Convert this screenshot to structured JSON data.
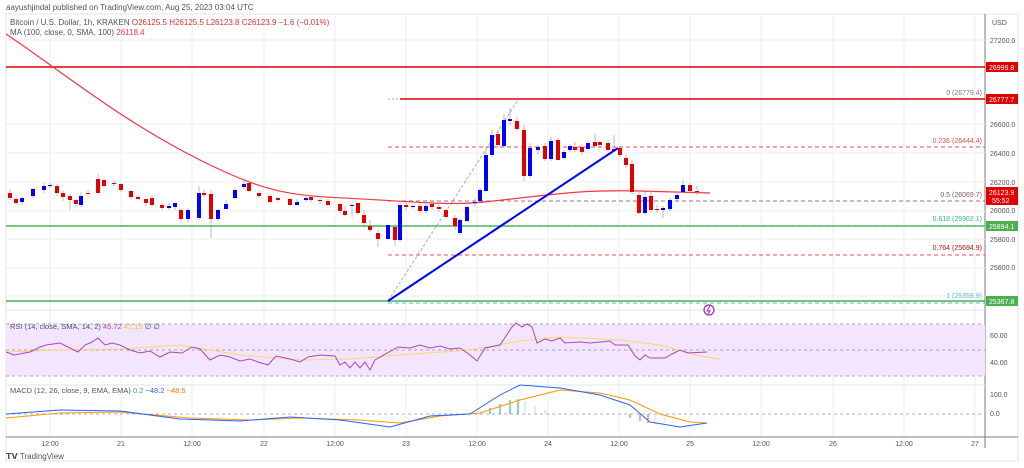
{
  "published": "aayushjindal published on TradingView.com, Aug 25, 2023 03:04 UTC",
  "header": {
    "symbol": "Bitcoin / U.S. Dollar, 1h, KRAKEN",
    "ohlc": "O26125.5  H26125.5  L26123.8  C26123.9  −1.6 (−0.01%)",
    "ma_label": "MA (100, close, 0, SMA, 100)",
    "ma_value": "26118.4"
  },
  "currency": "USD",
  "rsi": {
    "label": "RSI (14, close, SMA, 14, 2)",
    "value": "45.72",
    "sma": "41.15",
    "extra": "∅ ∅"
  },
  "macd": {
    "label": "MACD (12, 26, close, 9, EMA, EMA)",
    "hist": "0.2",
    "macd": "−48.2",
    "signal": "−48.5"
  },
  "footer": {
    "brand": "TradingView"
  },
  "colors": {
    "bull": "#0000ff",
    "bear": "#e00000",
    "ma": "#f23645",
    "support": "#4caf50",
    "resistance": "#e00000",
    "rsi": "#ab47bc",
    "rsi_sma": "#f8e28a",
    "macd": "#2962ff",
    "signal": "#ff6d00"
  },
  "chart_data": {
    "type": "candlestick",
    "title": "Bitcoin / U.S. Dollar, 1h, KRAKEN",
    "ylabel": "USD",
    "y_ticks": [
      "27200.0",
      "26600.0",
      "26400.0",
      "26200.0",
      "26000.0",
      "25800.0",
      "25600.0",
      "25400.0"
    ],
    "x_ticks": [
      "12:00",
      "21",
      "12:00",
      "22",
      "12:00",
      "23",
      "12:00",
      "24",
      "12:00",
      "25",
      "12:00",
      "26",
      "12:00",
      "27"
    ],
    "ylim": [
      25300,
      27300
    ],
    "price_tags": [
      {
        "label": "26999.8",
        "color": "#e00000"
      },
      {
        "label": "26777.7",
        "color": "#e00000"
      },
      {
        "label": "26123.9",
        "sub": "55:52",
        "color": "#e00000"
      },
      {
        "label": "25894.1",
        "color": "#4caf50"
      },
      {
        "label": "25367.8",
        "color": "#4caf50"
      }
    ],
    "horizontal_lines": [
      {
        "price": 26999.8,
        "color": "#e00000",
        "style": "solid"
      },
      {
        "price": 26777.7,
        "color": "#e00000",
        "style": "solid"
      },
      {
        "price": 25894.1,
        "color": "#4caf50",
        "style": "solid"
      },
      {
        "price": 25367.8,
        "color": "#4caf50",
        "style": "solid"
      }
    ],
    "fibonacci": [
      {
        "level": "0",
        "price": "26779.4",
        "label": "0 (26779.4)"
      },
      {
        "level": "0.236",
        "price": "26444.4",
        "label": "0.236 (26444.4)"
      },
      {
        "level": "0.5",
        "price": "26069.7",
        "label": "0.5 (26069.7)"
      },
      {
        "level": "0.618",
        "price": "25902.1",
        "label": "0.618 (25902.1)"
      },
      {
        "level": "0.764",
        "price": "25694.9",
        "label": "0.764 (25694.9)"
      },
      {
        "level": "1",
        "price": "25359.9",
        "label": "1 (25359.9)"
      }
    ],
    "trendline": {
      "from": [
        388,
        301
      ],
      "to": [
        618,
        148
      ],
      "color": "#0000ff"
    },
    "ma100_last": 26118.4,
    "rsi_levels": [
      "60.00",
      "40.00"
    ],
    "macd_levels": [
      "100.0",
      "0.0"
    ],
    "rsi_last": 45.72,
    "macd_last": {
      "hist": 0.2,
      "macd": -48.2,
      "signal": -48.5
    }
  }
}
